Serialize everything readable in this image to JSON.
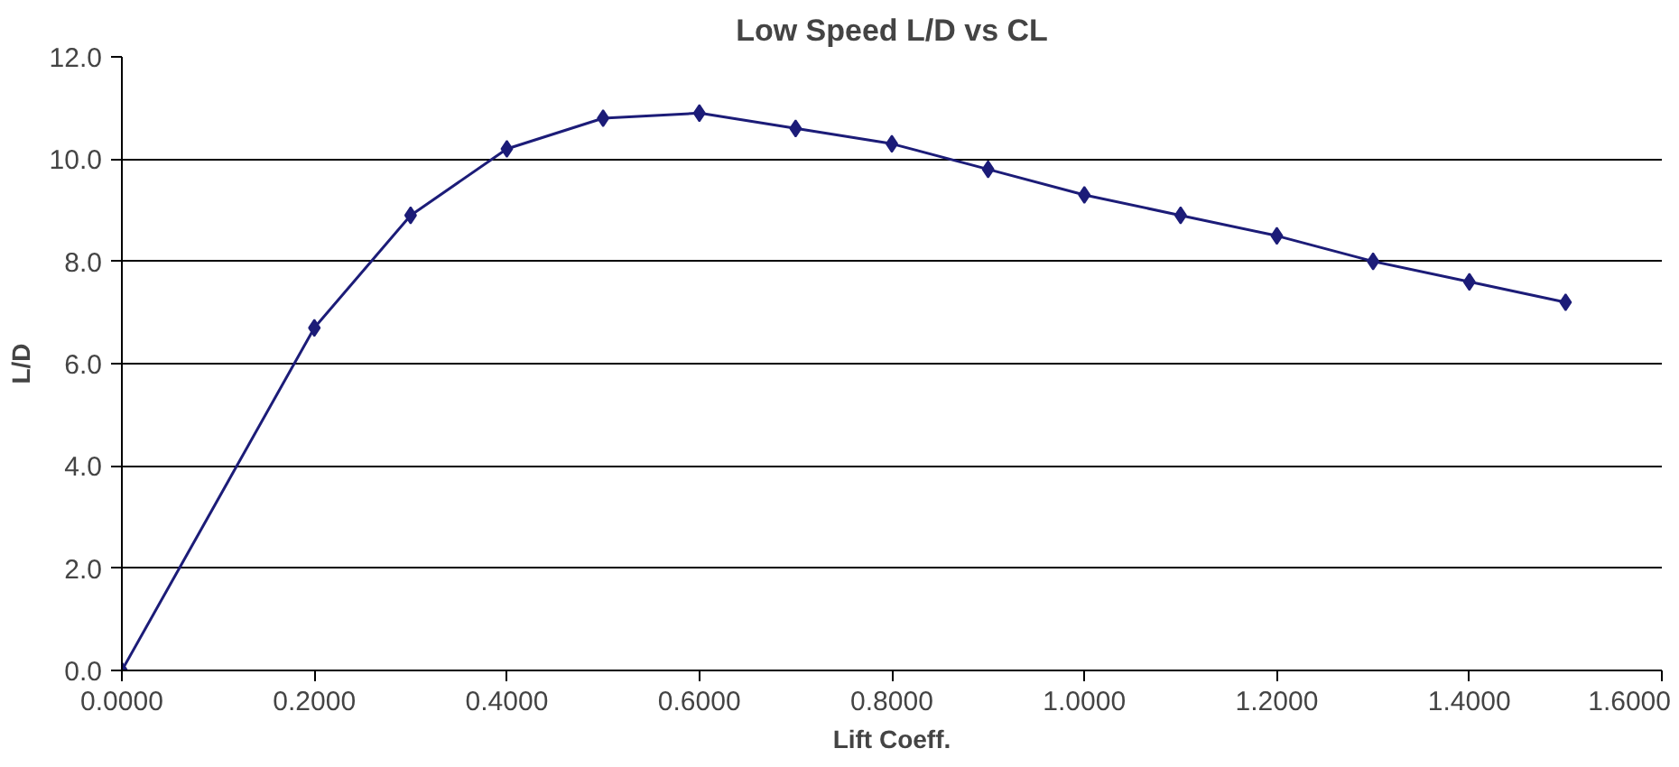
{
  "chart_data": {
    "type": "line",
    "title": "Low Speed L/D vs CL",
    "xlabel": "Lift Coeff.",
    "ylabel": "L/D",
    "x": [
      0,
      0.2,
      0.3,
      0.4,
      0.5,
      0.6,
      0.7,
      0.8,
      0.9,
      1.0,
      1.1,
      1.2,
      1.3,
      1.4,
      1.5
    ],
    "series": [
      {
        "color": "#1c1c78",
        "values": [
          0,
          6.7,
          8.9,
          10.2,
          10.8,
          10.9,
          10.6,
          10.3,
          9.8,
          9.3,
          8.9,
          8.5,
          8.0,
          7.6,
          7.2
        ]
      }
    ],
    "xlim": [
      0,
      1.6
    ],
    "ylim": [
      0,
      12
    ],
    "xticks": [
      {
        "value": 0,
        "label": "0.0000"
      },
      {
        "value": 0.2,
        "label": "0.2000"
      },
      {
        "value": 0.4,
        "label": "0.4000"
      },
      {
        "value": 0.6,
        "label": "0.6000"
      },
      {
        "value": 0.8,
        "label": "0.8000"
      },
      {
        "value": 1.0,
        "label": "1.0000"
      },
      {
        "value": 1.2,
        "label": "1.2000"
      },
      {
        "value": 1.4,
        "label": "1.4000"
      },
      {
        "value": 1.6,
        "label": "1.6000"
      }
    ],
    "yticks": [
      {
        "value": 0,
        "label": "0.0"
      },
      {
        "value": 2,
        "label": "2.0"
      },
      {
        "value": 4,
        "label": "4.0"
      },
      {
        "value": 6,
        "label": "6.0"
      },
      {
        "value": 8,
        "label": "8.0"
      },
      {
        "value": 10,
        "label": "10.0"
      },
      {
        "value": 12,
        "label": "12.0"
      }
    ],
    "grid": "y",
    "marker": "diamond",
    "line_style": "solid"
  }
}
